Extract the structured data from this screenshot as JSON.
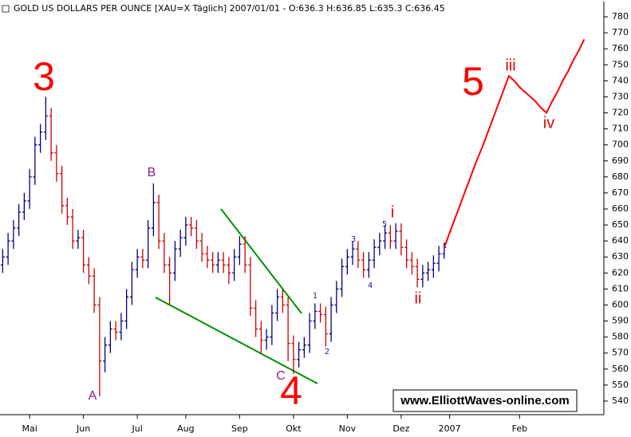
{
  "chart_data": {
    "type": "ohlc",
    "title": "GOLD US DOLLARS PER OUNCE [XAU=X  Täglich] 2007/01/01 - O:636.3 H:636.85 L:635.3 C:636.45",
    "categories": [
      null,
      null,
      null,
      null,
      null,
      "Mai",
      null,
      null,
      null,
      null,
      null,
      null,
      null,
      null,
      null,
      "Jun",
      null,
      null,
      null,
      null,
      null,
      null,
      null,
      null,
      null,
      "Jul",
      null,
      null,
      null,
      null,
      null,
      null,
      null,
      null,
      "Aug",
      null,
      null,
      null,
      null,
      null,
      null,
      null,
      null,
      null,
      "Sep",
      null,
      null,
      null,
      null,
      null,
      null,
      null,
      null,
      null,
      "Okt",
      null,
      null,
      null,
      null,
      null,
      null,
      null,
      null,
      null,
      "Nov",
      null,
      null,
      null,
      null,
      null,
      null,
      null,
      null,
      null,
      "Dez",
      null,
      null,
      null,
      null,
      null,
      null,
      null,
      null,
      "2007",
      null,
      null,
      null,
      null,
      null,
      null,
      null,
      null,
      null,
      null,
      null,
      null,
      "Feb",
      null,
      null,
      null,
      null,
      null,
      null,
      null,
      null,
      null,
      null,
      null,
      null,
      null,
      null,
      null
    ],
    "open": [
      625,
      630,
      640,
      648,
      658,
      665,
      680,
      700,
      708,
      718,
      695,
      682,
      662,
      655,
      640,
      642,
      625,
      618,
      600,
      565,
      575,
      585,
      583,
      590,
      605,
      622,
      630,
      628,
      648,
      664,
      640,
      625,
      620,
      635,
      642,
      650,
      648,
      640,
      632,
      628,
      625,
      628,
      625,
      620,
      630,
      638,
      625,
      598,
      585,
      578,
      580,
      595,
      605,
      600,
      576,
      566,
      572,
      575,
      590,
      596,
      594,
      582,
      600,
      610,
      624,
      630,
      635,
      628,
      622,
      628,
      636,
      640,
      645,
      640,
      646,
      636,
      628,
      624,
      616,
      620,
      622,
      626,
      632,
      null,
      null,
      null,
      null,
      null,
      null,
      null,
      null,
      null,
      null,
      null,
      null,
      null,
      null,
      null,
      null,
      null,
      null,
      null,
      null,
      null,
      null,
      null,
      null,
      null,
      null,
      null,
      null,
      null
    ],
    "high": [
      635,
      645,
      653,
      663,
      670,
      685,
      705,
      713,
      730,
      723,
      700,
      687,
      667,
      660,
      647,
      647,
      630,
      623,
      605,
      580,
      590,
      590,
      595,
      610,
      627,
      635,
      635,
      653,
      676,
      669,
      645,
      630,
      640,
      647,
      655,
      655,
      653,
      645,
      637,
      633,
      633,
      633,
      630,
      635,
      643,
      643,
      630,
      603,
      590,
      585,
      600,
      610,
      610,
      605,
      581,
      577,
      580,
      595,
      601,
      601,
      599,
      605,
      615,
      629,
      635,
      640,
      640,
      633,
      633,
      641,
      645,
      650,
      650,
      651,
      651,
      641,
      633,
      629,
      625,
      627,
      631,
      637,
      639,
      null,
      null,
      null,
      null,
      null,
      null,
      null,
      null,
      null,
      null,
      null,
      null,
      null,
      null,
      null,
      null,
      null,
      null,
      null,
      null,
      null,
      null,
      null,
      null,
      null,
      null,
      null,
      null,
      null
    ],
    "low": [
      620,
      625,
      635,
      643,
      653,
      660,
      675,
      695,
      703,
      690,
      677,
      657,
      650,
      635,
      635,
      620,
      613,
      595,
      543,
      558,
      570,
      578,
      578,
      585,
      600,
      617,
      623,
      623,
      643,
      635,
      620,
      600,
      615,
      630,
      637,
      643,
      635,
      627,
      623,
      620,
      620,
      620,
      613,
      615,
      625,
      620,
      593,
      580,
      570,
      572,
      575,
      590,
      595,
      565,
      557,
      561,
      567,
      570,
      585,
      589,
      574,
      577,
      595,
      605,
      619,
      625,
      623,
      617,
      617,
      623,
      631,
      635,
      635,
      635,
      631,
      623,
      619,
      611,
      611,
      615,
      617,
      621,
      629,
      null,
      null,
      null,
      null,
      null,
      null,
      null,
      null,
      null,
      null,
      null,
      null,
      null,
      null,
      null,
      null,
      null,
      null,
      null,
      null,
      null,
      null,
      null,
      null,
      null,
      null,
      null,
      null,
      null
    ],
    "close": [
      630,
      640,
      648,
      658,
      665,
      680,
      700,
      708,
      718,
      695,
      682,
      662,
      655,
      640,
      642,
      625,
      618,
      600,
      565,
      575,
      585,
      583,
      590,
      605,
      622,
      630,
      628,
      648,
      664,
      640,
      625,
      620,
      635,
      642,
      650,
      648,
      640,
      632,
      628,
      625,
      628,
      625,
      620,
      630,
      638,
      625,
      598,
      585,
      578,
      580,
      595,
      605,
      600,
      576,
      566,
      572,
      575,
      590,
      596,
      594,
      582,
      600,
      610,
      624,
      630,
      635,
      628,
      622,
      628,
      636,
      640,
      645,
      640,
      646,
      636,
      628,
      624,
      616,
      620,
      622,
      626,
      632,
      636,
      null,
      null,
      null,
      null,
      null,
      null,
      null,
      null,
      null,
      null,
      null,
      null,
      null,
      null,
      null,
      null,
      null,
      null,
      null,
      null,
      null,
      null,
      null,
      null,
      null,
      null,
      null,
      null,
      null
    ],
    "up_color": "#000080",
    "down_color": "#cc0000",
    "projection": {
      "color": "#ff0000",
      "values": [
        null,
        null,
        null,
        null,
        null,
        null,
        null,
        null,
        null,
        null,
        null,
        null,
        null,
        null,
        null,
        null,
        null,
        null,
        null,
        null,
        null,
        null,
        null,
        null,
        null,
        null,
        null,
        null,
        null,
        null,
        null,
        null,
        null,
        null,
        null,
        null,
        null,
        null,
        null,
        null,
        null,
        null,
        null,
        null,
        null,
        null,
        null,
        null,
        null,
        null,
        null,
        null,
        null,
        null,
        null,
        null,
        null,
        null,
        null,
        null,
        null,
        null,
        null,
        null,
        null,
        null,
        null,
        null,
        null,
        null,
        null,
        null,
        null,
        null,
        null,
        null,
        null,
        null,
        null,
        null,
        null,
        null,
        636,
        645,
        654,
        663,
        672,
        681,
        690,
        698,
        707,
        716,
        725,
        734,
        743,
        740,
        736,
        733,
        730,
        727,
        723,
        720,
        727,
        733,
        740,
        746,
        753,
        759,
        766,
        null,
        null,
        null
      ]
    },
    "ylim": [
      531.5,
      785.5
    ],
    "yticks": [
      540,
      550,
      560,
      570,
      580,
      590,
      600,
      610,
      620,
      630,
      640,
      650,
      660,
      670,
      680,
      690,
      700,
      710,
      720,
      730,
      740,
      750,
      760,
      770,
      780
    ],
    "grid": false,
    "annotations": {
      "wave_3": "3",
      "wave_a": "A",
      "wave_b": "B",
      "wave_c": "C",
      "wave_4": "4",
      "wave_5": "5",
      "sub_i": "i",
      "sub_ii": "ii",
      "sub_iii": "iii",
      "sub_iv": "iv",
      "minor_1": "1",
      "minor_2": "2",
      "minor_3": "3",
      "minor_4": "4",
      "minor_5": "5",
      "watermark": "www.ElliottWaves-online.com"
    }
  }
}
